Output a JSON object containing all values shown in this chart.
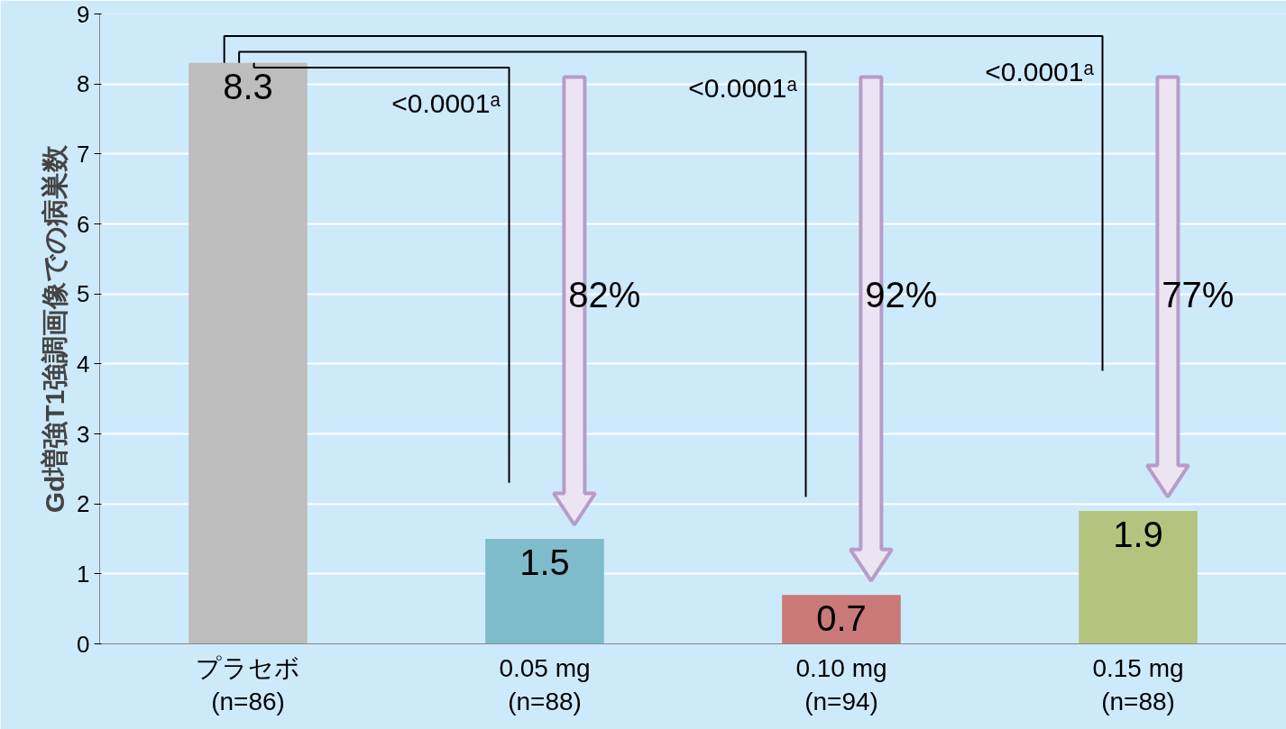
{
  "chart_data": {
    "type": "bar",
    "ylabel": "Gd増強T1強調画像での病巣数",
    "categories": [
      "プラセボ\n(n=86)",
      "0.05 mg\n(n=88)",
      "0.10 mg\n(n=94)",
      "0.15 mg\n(n=88)"
    ],
    "values": [
      8.3,
      1.5,
      0.7,
      1.9
    ],
    "colors": [
      "#bdbdbd",
      "#7fbccb",
      "#c97a78",
      "#b4c47e"
    ],
    "ylim": [
      0,
      9
    ],
    "yticks": [
      0,
      1,
      2,
      3,
      4,
      5,
      6,
      7,
      8,
      9
    ],
    "grid": "y",
    "data_labels": true,
    "annotations": [
      "<0.0001ᵃ",
      "<0.0001ᵃ",
      "<0.0001ᵃ",
      "82%",
      "92%",
      "77%"
    ]
  }
}
